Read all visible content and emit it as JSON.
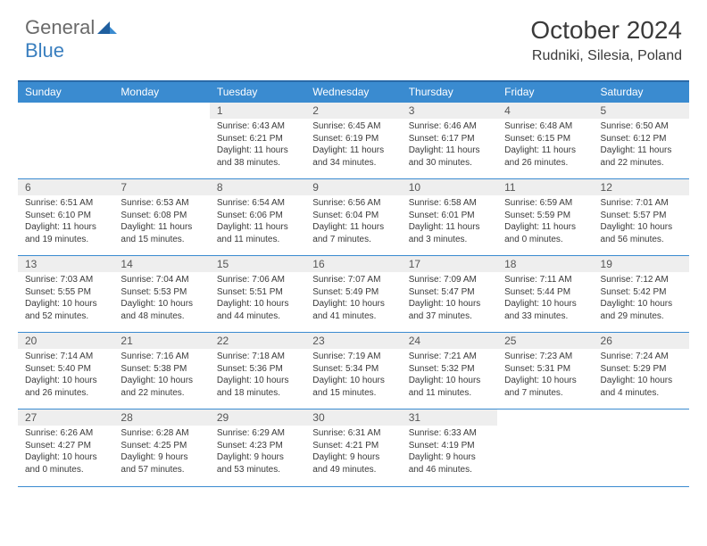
{
  "brand": {
    "word1": "General",
    "word2": "Blue",
    "logo_color": "#3a8bd0"
  },
  "title": "October 2024",
  "location": "Rudniki, Silesia, Poland",
  "colors": {
    "header_bg": "#3a8bd0",
    "header_border": "#2a6aa8",
    "row_border": "#3a8bd0",
    "daynum_bg": "#eeeeee",
    "text": "#3a3a3a"
  },
  "weekdays": [
    "Sunday",
    "Monday",
    "Tuesday",
    "Wednesday",
    "Thursday",
    "Friday",
    "Saturday"
  ],
  "weeks": [
    [
      {
        "empty": true
      },
      {
        "empty": true
      },
      {
        "num": "1",
        "sunrise": "Sunrise: 6:43 AM",
        "sunset": "Sunset: 6:21 PM",
        "day1": "Daylight: 11 hours",
        "day2": "and 38 minutes."
      },
      {
        "num": "2",
        "sunrise": "Sunrise: 6:45 AM",
        "sunset": "Sunset: 6:19 PM",
        "day1": "Daylight: 11 hours",
        "day2": "and 34 minutes."
      },
      {
        "num": "3",
        "sunrise": "Sunrise: 6:46 AM",
        "sunset": "Sunset: 6:17 PM",
        "day1": "Daylight: 11 hours",
        "day2": "and 30 minutes."
      },
      {
        "num": "4",
        "sunrise": "Sunrise: 6:48 AM",
        "sunset": "Sunset: 6:15 PM",
        "day1": "Daylight: 11 hours",
        "day2": "and 26 minutes."
      },
      {
        "num": "5",
        "sunrise": "Sunrise: 6:50 AM",
        "sunset": "Sunset: 6:12 PM",
        "day1": "Daylight: 11 hours",
        "day2": "and 22 minutes."
      }
    ],
    [
      {
        "num": "6",
        "sunrise": "Sunrise: 6:51 AM",
        "sunset": "Sunset: 6:10 PM",
        "day1": "Daylight: 11 hours",
        "day2": "and 19 minutes."
      },
      {
        "num": "7",
        "sunrise": "Sunrise: 6:53 AM",
        "sunset": "Sunset: 6:08 PM",
        "day1": "Daylight: 11 hours",
        "day2": "and 15 minutes."
      },
      {
        "num": "8",
        "sunrise": "Sunrise: 6:54 AM",
        "sunset": "Sunset: 6:06 PM",
        "day1": "Daylight: 11 hours",
        "day2": "and 11 minutes."
      },
      {
        "num": "9",
        "sunrise": "Sunrise: 6:56 AM",
        "sunset": "Sunset: 6:04 PM",
        "day1": "Daylight: 11 hours",
        "day2": "and 7 minutes."
      },
      {
        "num": "10",
        "sunrise": "Sunrise: 6:58 AM",
        "sunset": "Sunset: 6:01 PM",
        "day1": "Daylight: 11 hours",
        "day2": "and 3 minutes."
      },
      {
        "num": "11",
        "sunrise": "Sunrise: 6:59 AM",
        "sunset": "Sunset: 5:59 PM",
        "day1": "Daylight: 11 hours",
        "day2": "and 0 minutes."
      },
      {
        "num": "12",
        "sunrise": "Sunrise: 7:01 AM",
        "sunset": "Sunset: 5:57 PM",
        "day1": "Daylight: 10 hours",
        "day2": "and 56 minutes."
      }
    ],
    [
      {
        "num": "13",
        "sunrise": "Sunrise: 7:03 AM",
        "sunset": "Sunset: 5:55 PM",
        "day1": "Daylight: 10 hours",
        "day2": "and 52 minutes."
      },
      {
        "num": "14",
        "sunrise": "Sunrise: 7:04 AM",
        "sunset": "Sunset: 5:53 PM",
        "day1": "Daylight: 10 hours",
        "day2": "and 48 minutes."
      },
      {
        "num": "15",
        "sunrise": "Sunrise: 7:06 AM",
        "sunset": "Sunset: 5:51 PM",
        "day1": "Daylight: 10 hours",
        "day2": "and 44 minutes."
      },
      {
        "num": "16",
        "sunrise": "Sunrise: 7:07 AM",
        "sunset": "Sunset: 5:49 PM",
        "day1": "Daylight: 10 hours",
        "day2": "and 41 minutes."
      },
      {
        "num": "17",
        "sunrise": "Sunrise: 7:09 AM",
        "sunset": "Sunset: 5:47 PM",
        "day1": "Daylight: 10 hours",
        "day2": "and 37 minutes."
      },
      {
        "num": "18",
        "sunrise": "Sunrise: 7:11 AM",
        "sunset": "Sunset: 5:44 PM",
        "day1": "Daylight: 10 hours",
        "day2": "and 33 minutes."
      },
      {
        "num": "19",
        "sunrise": "Sunrise: 7:12 AM",
        "sunset": "Sunset: 5:42 PM",
        "day1": "Daylight: 10 hours",
        "day2": "and 29 minutes."
      }
    ],
    [
      {
        "num": "20",
        "sunrise": "Sunrise: 7:14 AM",
        "sunset": "Sunset: 5:40 PM",
        "day1": "Daylight: 10 hours",
        "day2": "and 26 minutes."
      },
      {
        "num": "21",
        "sunrise": "Sunrise: 7:16 AM",
        "sunset": "Sunset: 5:38 PM",
        "day1": "Daylight: 10 hours",
        "day2": "and 22 minutes."
      },
      {
        "num": "22",
        "sunrise": "Sunrise: 7:18 AM",
        "sunset": "Sunset: 5:36 PM",
        "day1": "Daylight: 10 hours",
        "day2": "and 18 minutes."
      },
      {
        "num": "23",
        "sunrise": "Sunrise: 7:19 AM",
        "sunset": "Sunset: 5:34 PM",
        "day1": "Daylight: 10 hours",
        "day2": "and 15 minutes."
      },
      {
        "num": "24",
        "sunrise": "Sunrise: 7:21 AM",
        "sunset": "Sunset: 5:32 PM",
        "day1": "Daylight: 10 hours",
        "day2": "and 11 minutes."
      },
      {
        "num": "25",
        "sunrise": "Sunrise: 7:23 AM",
        "sunset": "Sunset: 5:31 PM",
        "day1": "Daylight: 10 hours",
        "day2": "and 7 minutes."
      },
      {
        "num": "26",
        "sunrise": "Sunrise: 7:24 AM",
        "sunset": "Sunset: 5:29 PM",
        "day1": "Daylight: 10 hours",
        "day2": "and 4 minutes."
      }
    ],
    [
      {
        "num": "27",
        "sunrise": "Sunrise: 6:26 AM",
        "sunset": "Sunset: 4:27 PM",
        "day1": "Daylight: 10 hours",
        "day2": "and 0 minutes."
      },
      {
        "num": "28",
        "sunrise": "Sunrise: 6:28 AM",
        "sunset": "Sunset: 4:25 PM",
        "day1": "Daylight: 9 hours",
        "day2": "and 57 minutes."
      },
      {
        "num": "29",
        "sunrise": "Sunrise: 6:29 AM",
        "sunset": "Sunset: 4:23 PM",
        "day1": "Daylight: 9 hours",
        "day2": "and 53 minutes."
      },
      {
        "num": "30",
        "sunrise": "Sunrise: 6:31 AM",
        "sunset": "Sunset: 4:21 PM",
        "day1": "Daylight: 9 hours",
        "day2": "and 49 minutes."
      },
      {
        "num": "31",
        "sunrise": "Sunrise: 6:33 AM",
        "sunset": "Sunset: 4:19 PM",
        "day1": "Daylight: 9 hours",
        "day2": "and 46 minutes."
      },
      {
        "empty": true
      },
      {
        "empty": true
      }
    ]
  ]
}
